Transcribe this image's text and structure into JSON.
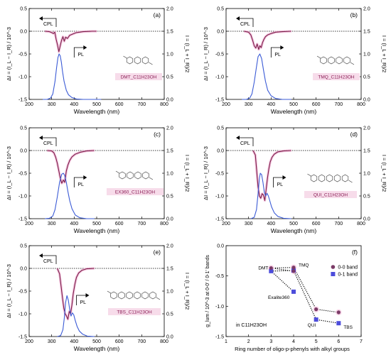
{
  "figure": {
    "wavelength_axis_label": "Wavelength (nm)",
    "delta_i_axis_label": "ΔI = (I_L − I_R) / 10^-3",
    "total_i_axis_label": "I = (I_L + I_R)/2",
    "cpl_label": "CPL",
    "pl_label": "PL"
  },
  "chart_data": [
    {
      "type": "line",
      "panel_label": "(a)",
      "sample": "DMT_C11H23OH",
      "xlim": [
        200,
        800
      ],
      "xticks": [
        200,
        300,
        400,
        500,
        600,
        700,
        800
      ],
      "ylim_left": [
        -1.5,
        0.5
      ],
      "yticks_left": [
        -1.5,
        -1.0,
        -0.5,
        0.0,
        0.5
      ],
      "ylim_right": [
        0,
        2.0
      ],
      "yticks_right": [
        0.0,
        0.5,
        1.0,
        1.5,
        2.0
      ],
      "series": [
        {
          "axis": "left",
          "color": "#7a1f4a",
          "x": [
            270,
            290,
            300,
            308,
            314,
            320,
            326,
            332,
            338,
            344,
            350,
            356,
            362,
            370,
            380,
            395,
            410,
            440,
            480,
            500
          ],
          "y": [
            0.0,
            -0.01,
            -0.03,
            -0.05,
            -0.02,
            -0.18,
            -0.3,
            -0.45,
            -0.32,
            -0.2,
            -0.12,
            -0.22,
            -0.13,
            -0.16,
            -0.09,
            -0.06,
            -0.03,
            -0.01,
            0.0,
            0.0
          ]
        },
        {
          "axis": "right",
          "color": "#3b5bd6",
          "x": [
            260,
            280,
            295,
            305,
            315,
            322,
            328,
            333,
            338,
            343,
            348,
            355,
            365,
            375,
            390,
            410,
            440,
            480,
            520
          ],
          "y": [
            0.0,
            0.0,
            0.03,
            0.12,
            0.4,
            0.7,
            0.92,
            1.0,
            0.96,
            0.82,
            0.62,
            0.4,
            0.2,
            0.1,
            0.04,
            0.01,
            0.0,
            0.0,
            0.0
          ]
        }
      ]
    },
    {
      "type": "line",
      "panel_label": "(b)",
      "sample": "TMQ_C11H23OH",
      "xlim": [
        200,
        800
      ],
      "xticks": [
        200,
        300,
        400,
        500,
        600,
        700,
        800
      ],
      "ylim_left": [
        -1.5,
        0.5
      ],
      "yticks_left": [
        -1.5,
        -1.0,
        -0.5,
        0.0,
        0.5
      ],
      "ylim_right": [
        0,
        2.0
      ],
      "yticks_right": [
        0.0,
        0.5,
        1.0,
        1.5,
        2.0
      ],
      "series": [
        {
          "axis": "left",
          "color": "#7a1f4a",
          "x": [
            280,
            300,
            310,
            318,
            325,
            332,
            338,
            345,
            350,
            356,
            362,
            368,
            375,
            385,
            400,
            420,
            450,
            490
          ],
          "y": [
            0.0,
            -0.02,
            -0.08,
            -0.2,
            -0.32,
            -0.37,
            -0.28,
            -0.4,
            -0.32,
            -0.36,
            -0.25,
            -0.18,
            -0.12,
            -0.08,
            -0.05,
            -0.02,
            -0.01,
            0.0
          ]
        },
        {
          "axis": "right",
          "color": "#3b5bd6",
          "x": [
            270,
            290,
            305,
            315,
            325,
            335,
            342,
            350,
            358,
            366,
            375,
            385,
            400,
            420,
            450,
            490
          ],
          "y": [
            0.0,
            0.0,
            0.03,
            0.12,
            0.38,
            0.72,
            0.94,
            1.0,
            0.9,
            0.65,
            0.4,
            0.2,
            0.08,
            0.02,
            0.0,
            0.0
          ]
        }
      ]
    },
    {
      "type": "line",
      "panel_label": "(c)",
      "sample": "EX360_C11H23OH",
      "xlim": [
        200,
        800
      ],
      "xticks": [
        200,
        300,
        400,
        500,
        600,
        700,
        800
      ],
      "ylim_left": [
        -1.5,
        0.5
      ],
      "yticks_left": [
        -1.5,
        -1.0,
        -0.5,
        0.0,
        0.5
      ],
      "ylim_right": [
        0,
        2.0
      ],
      "yticks_right": [
        0.0,
        0.5,
        1.0,
        1.5,
        2.0
      ],
      "series": [
        {
          "axis": "left",
          "color": "#7a1f4a",
          "x": [
            280,
            300,
            310,
            318,
            325,
            332,
            338,
            345,
            352,
            358,
            365,
            372,
            380,
            390,
            405,
            425,
            455,
            490
          ],
          "y": [
            0.0,
            -0.01,
            -0.05,
            -0.15,
            -0.28,
            -0.45,
            -0.6,
            -0.72,
            -0.65,
            -0.7,
            -0.45,
            -0.32,
            -0.22,
            -0.14,
            -0.08,
            -0.04,
            -0.01,
            0.0
          ]
        },
        {
          "axis": "right",
          "color": "#3b5bd6",
          "x": [
            270,
            290,
            305,
            315,
            325,
            335,
            345,
            352,
            358,
            365,
            372,
            380,
            390,
            405,
            425,
            455,
            490
          ],
          "y": [
            0.0,
            0.01,
            0.06,
            0.2,
            0.48,
            0.8,
            0.98,
            1.0,
            0.95,
            0.8,
            0.6,
            0.4,
            0.22,
            0.08,
            0.02,
            0.0,
            0.0
          ]
        }
      ]
    },
    {
      "type": "line",
      "panel_label": "(d)",
      "sample": "QUI_C11H23OH",
      "xlim": [
        200,
        800
      ],
      "xticks": [
        200,
        300,
        400,
        500,
        600,
        700,
        800
      ],
      "ylim_left": [
        -1.5,
        0.5
      ],
      "yticks_left": [
        -1.5,
        -1.0,
        -0.5,
        0.0,
        0.5
      ],
      "ylim_right": [
        0,
        2.0
      ],
      "yticks_right": [
        0.0,
        0.5,
        1.0,
        1.5,
        2.0
      ],
      "series": [
        {
          "axis": "left",
          "color": "#7a1f4a",
          "x": [
            320,
            330,
            336,
            342,
            348,
            354,
            360,
            366,
            372,
            378,
            384,
            390,
            396,
            404,
            414,
            430,
            455,
            490
          ],
          "y": [
            0.0,
            -0.1,
            -0.45,
            -0.8,
            -1.0,
            -1.05,
            -0.95,
            -0.98,
            -1.1,
            -0.85,
            -0.6,
            -0.4,
            -0.25,
            -0.15,
            -0.08,
            -0.03,
            -0.01,
            0.0
          ]
        },
        {
          "axis": "right",
          "color": "#3b5bd6",
          "x": [
            310,
            325,
            335,
            342,
            348,
            352,
            358,
            364,
            370,
            376,
            382,
            388,
            394,
            402,
            414,
            430,
            455,
            490
          ],
          "y": [
            0.0,
            0.03,
            0.2,
            0.55,
            0.88,
            1.0,
            0.97,
            0.8,
            0.58,
            0.5,
            0.56,
            0.5,
            0.4,
            0.26,
            0.13,
            0.05,
            0.01,
            0.0
          ]
        }
      ]
    },
    {
      "type": "line",
      "panel_label": "(e)",
      "sample": "TBS_C11H23OH",
      "xlim": [
        200,
        800
      ],
      "xticks": [
        200,
        300,
        400,
        500,
        600,
        700,
        800
      ],
      "ylim_left": [
        -1.5,
        0.5
      ],
      "yticks_left": [
        -1.5,
        -1.0,
        -0.5,
        0.0,
        0.5
      ],
      "ylim_right": [
        0,
        2.0
      ],
      "yticks_right": [
        0.0,
        0.5,
        1.0,
        1.5,
        2.0
      ],
      "series": [
        {
          "axis": "left",
          "color": "#7a1f4a",
          "x": [
            325,
            335,
            342,
            348,
            354,
            360,
            366,
            372,
            378,
            384,
            390,
            396,
            403,
            410,
            420,
            435,
            455,
            490
          ],
          "y": [
            0.0,
            -0.12,
            -0.4,
            -0.65,
            -0.88,
            -1.0,
            -1.05,
            -1.12,
            -0.95,
            -1.0,
            -0.8,
            -0.55,
            -0.35,
            -0.2,
            -0.1,
            -0.04,
            -0.01,
            0.0
          ]
        },
        {
          "axis": "right",
          "color": "#3b5bd6",
          "x": [
            325,
            340,
            350,
            356,
            362,
            368,
            374,
            380,
            386,
            392,
            398,
            405,
            413,
            423,
            438,
            458,
            490
          ],
          "y": [
            0.0,
            0.02,
            0.15,
            0.4,
            0.75,
            0.9,
            0.8,
            0.6,
            0.45,
            0.52,
            0.48,
            0.35,
            0.22,
            0.12,
            0.05,
            0.01,
            0.0
          ]
        }
      ]
    },
    {
      "type": "scatter",
      "panel_label": "(f)",
      "xlabel": "Ring number of oligo-p-phenyls with alkyl groups",
      "ylabel": "g_lum / 10^-3 at 0-0' / 0-1' bands",
      "solvent": "in C11H23OH",
      "xlim": [
        1,
        7
      ],
      "xticks": [
        1,
        2,
        3,
        4,
        5,
        6,
        7
      ],
      "ylim": [
        -1.5,
        0
      ],
      "yticks": [
        -1.5,
        -1.0,
        -0.5,
        0.0
      ],
      "legend_position": "right",
      "series": [
        {
          "name": "0-0 band",
          "color": "#7a3a66",
          "marker": "circle",
          "x": [
            3,
            4,
            4,
            5,
            6
          ],
          "y": [
            -0.37,
            -0.36,
            -0.42,
            -1.05,
            -1.1
          ]
        },
        {
          "name": "0-1 band",
          "color": "#4c4cdb",
          "marker": "square",
          "x": [
            3,
            4,
            4,
            5,
            6
          ],
          "y": [
            -0.42,
            -0.41,
            -0.76,
            -1.22,
            -1.28
          ]
        }
      ],
      "point_labels": [
        {
          "text": "DMT",
          "x": 3,
          "y": -0.37
        },
        {
          "text": "TMQ",
          "x": 4,
          "y": -0.36
        },
        {
          "text": "Exalite360",
          "x": 4,
          "y": -0.76
        },
        {
          "text": "QUI",
          "x": 5,
          "y": -1.22
        },
        {
          "text": "TBS",
          "x": 6,
          "y": -1.28
        }
      ]
    }
  ]
}
